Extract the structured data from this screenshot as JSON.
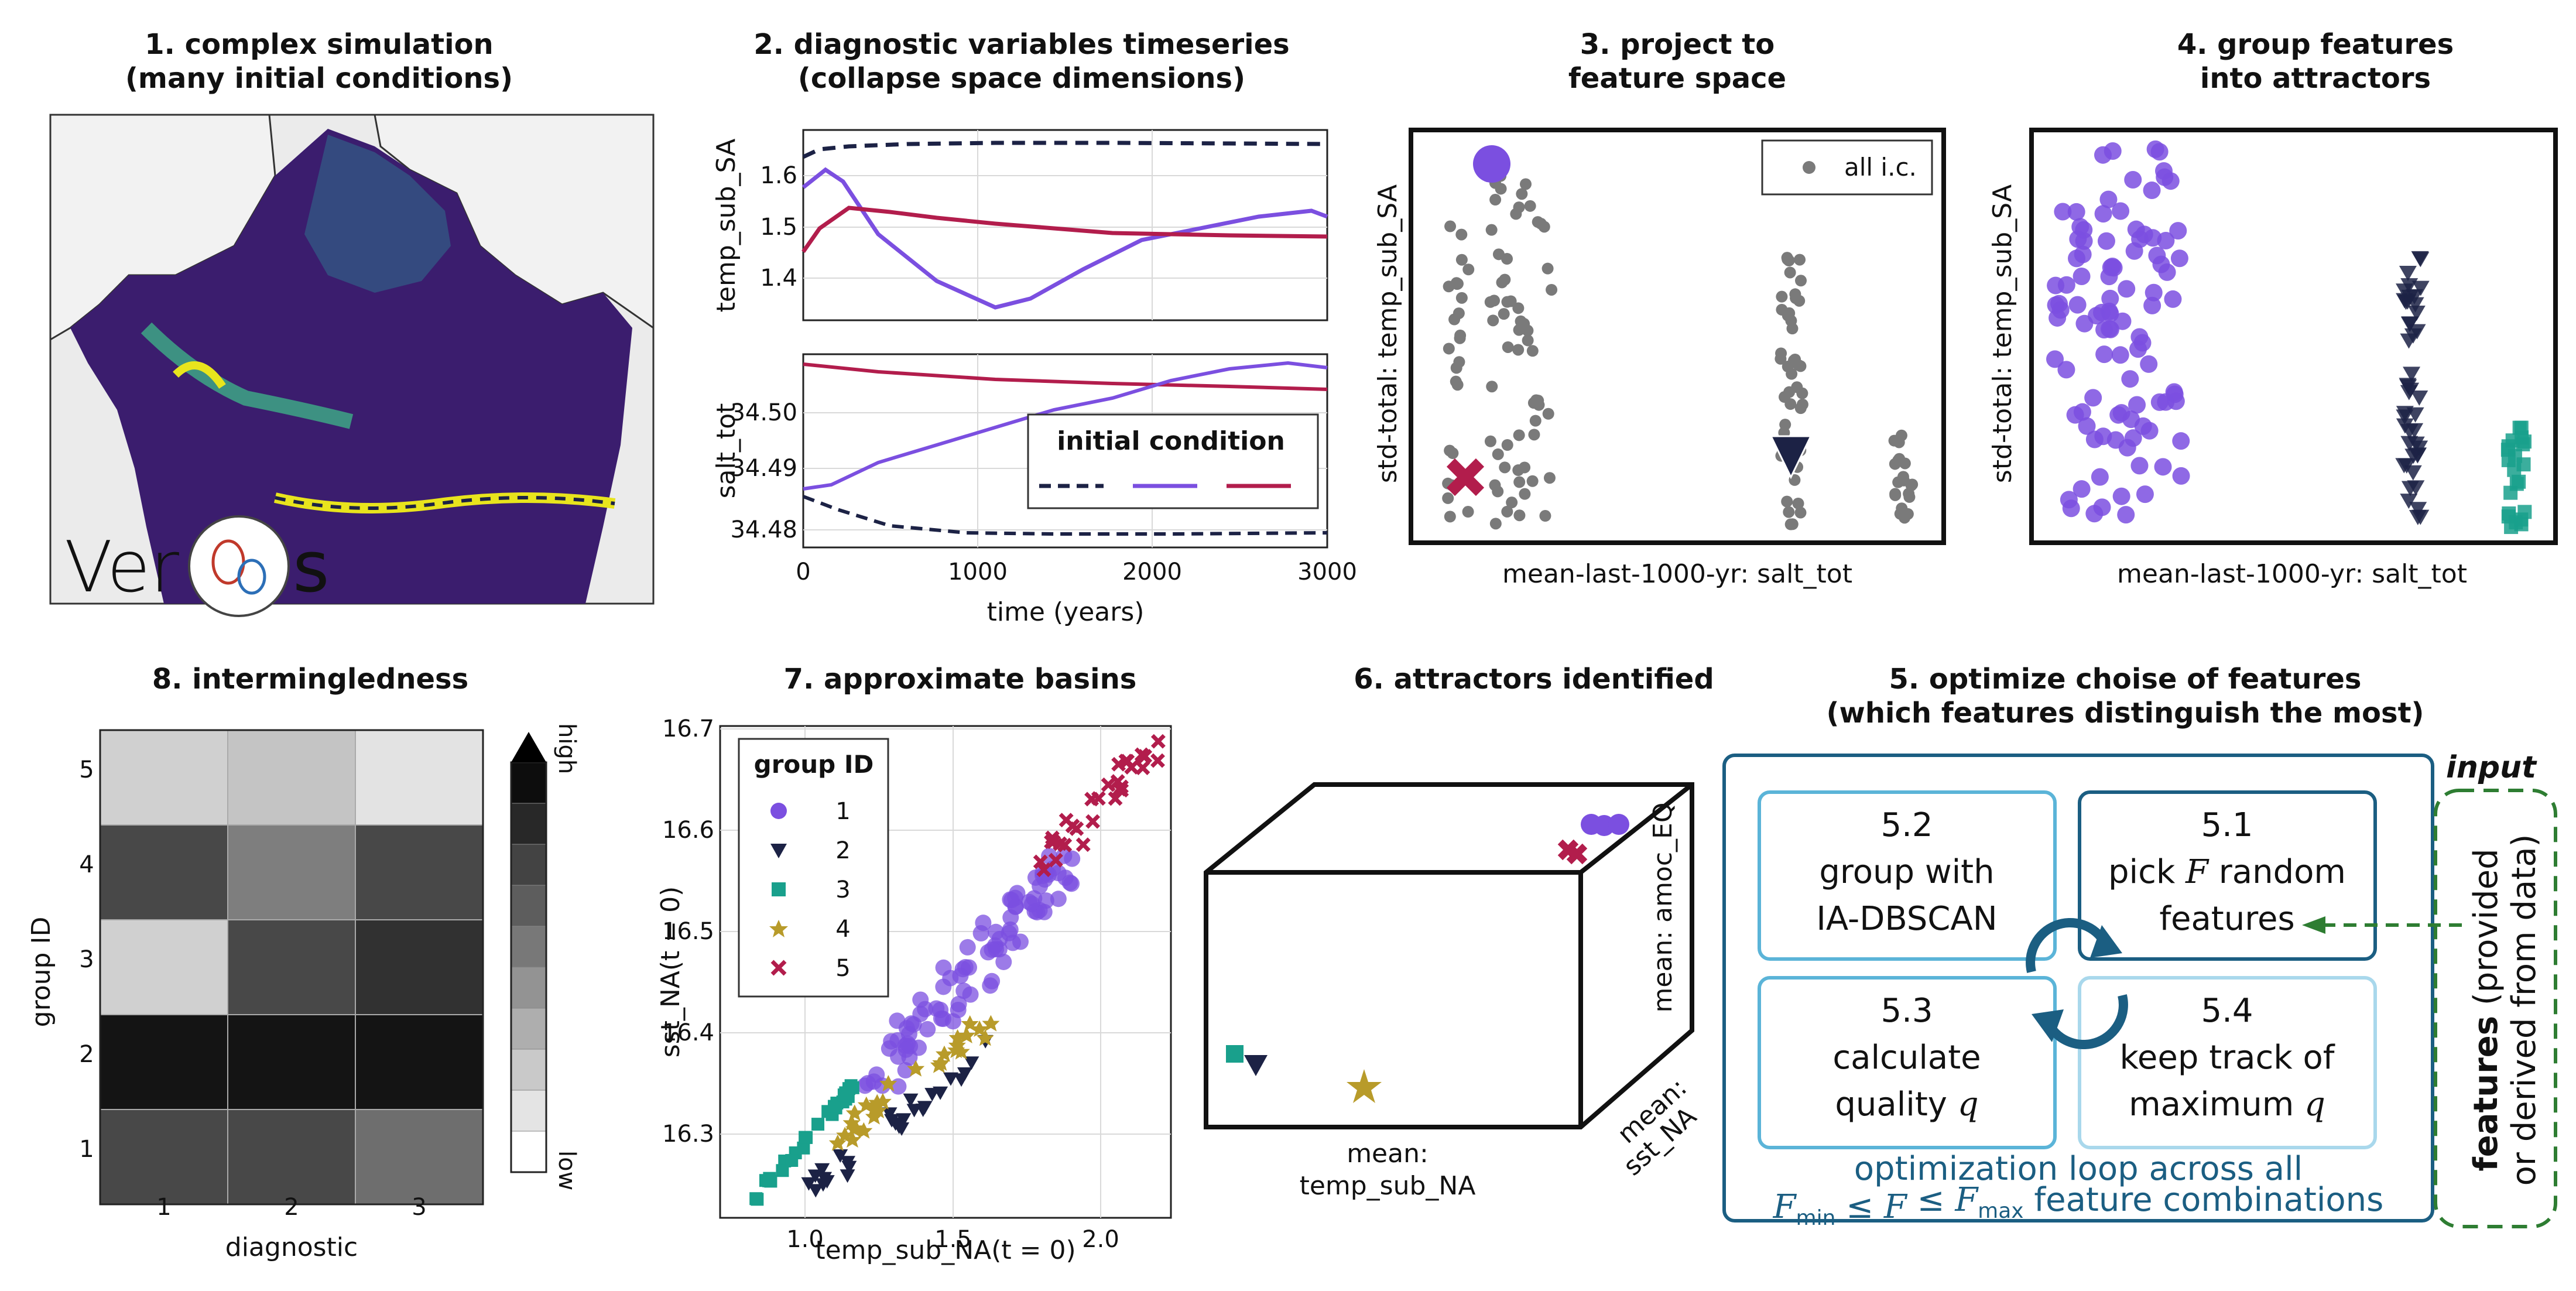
{
  "colors": {
    "purple": "#7b4fe0",
    "navy": "#1c2245",
    "teal": "#19a08c",
    "gold": "#b89b2a",
    "crimson": "#b21d4c",
    "gray": "#7a7a7a",
    "blue_dark": "#1b5e82",
    "blue_light": "#5bb4d8",
    "green": "#2e7d32"
  },
  "panel1": {
    "title1": "1. complex simulation",
    "title2": "(many initial conditions)",
    "logo_text": "Ver",
    "logo_end": "s"
  },
  "panel2": {
    "title1": "2. diagnostic variables timeseries",
    "title2": "(collapse space dimensions)",
    "ylabel_top": "temp_sub_SA",
    "ylabel_bottom": "salt_tot",
    "xlabel": "time (years)",
    "xticks": [
      "0",
      "1000",
      "2000",
      "3000"
    ],
    "yticks_top": [
      "1.6",
      "1.5",
      "1.4"
    ],
    "yticks_bottom": [
      "34.50",
      "34.49",
      "34.48"
    ],
    "legend_title": "initial condition"
  },
  "panel3": {
    "title1": "3. project to",
    "title2": "feature space",
    "ylabel": "std-total: temp_sub_SA",
    "xlabel": "mean-last-1000-yr: salt_tot",
    "legend": "all i.c."
  },
  "panel4": {
    "title1": "4. group features",
    "title2": "into attractors",
    "ylabel": "std-total: temp_sub_SA",
    "xlabel": "mean-last-1000-yr: salt_tot"
  },
  "panel5": {
    "title1": "5. optimize choise of features",
    "title2": "(which features distinguish the most)",
    "box52": [
      "5.2",
      "group with",
      "IA-DBSCAN"
    ],
    "box51_num": "5.1",
    "box51_pre": "pick ",
    "box51_var": "F",
    "box51_post": " random",
    "box51_l3": "features",
    "box53": [
      "5.3",
      "calculate"
    ],
    "box53_l3": "quality ",
    "box53_var": "q",
    "box54": [
      "5.4",
      "keep track of"
    ],
    "box54_l3": "maximum ",
    "box54_var": "q",
    "loop_line1": "optimization loop across all",
    "loop_f": "F",
    "loop_min": "min",
    "loop_le1": " ≤ ",
    "loop_le2": " ≤ ",
    "loop_max": "max",
    "loop_tail": " feature combinations",
    "input_label": "input",
    "features_bold": "features",
    "features_rest": " (provided",
    "features_line2": "or derived from data)"
  },
  "panel6": {
    "title": "6. attractors identified",
    "x_label1": "mean:",
    "x_label2": "temp_sub_NA",
    "y_label1": "mean:",
    "y_label2": "sst_NA",
    "z_label": "mean: amoc_EQ"
  },
  "panel7": {
    "title": "7. approximate basins",
    "xlabel": "temp_sub_NA(t = 0)",
    "ylabel": "sst_NA(t = 0)",
    "xticks": [
      "1.0",
      "1.5",
      "2.0"
    ],
    "yticks": [
      "16.7",
      "16.6",
      "16.5",
      "16.4",
      "16.3"
    ],
    "legend_title": "group ID",
    "legend_items": [
      "1",
      "2",
      "3",
      "4",
      "5"
    ]
  },
  "panel8": {
    "title": "8. intermingledness",
    "xlabel": "diagnostic",
    "ylabel": "group ID",
    "xticks": [
      "1",
      "2",
      "3"
    ],
    "yticks": [
      "5",
      "4",
      "3",
      "2",
      "1"
    ],
    "cbar_high": "high",
    "cbar_low": "low",
    "grid_values": [
      [
        0.2,
        0.25,
        0.12
      ],
      [
        0.78,
        0.55,
        0.78
      ],
      [
        0.2,
        0.78,
        0.88
      ],
      [
        1.0,
        1.0,
        1.0
      ],
      [
        0.78,
        0.78,
        0.62
      ]
    ]
  }
}
